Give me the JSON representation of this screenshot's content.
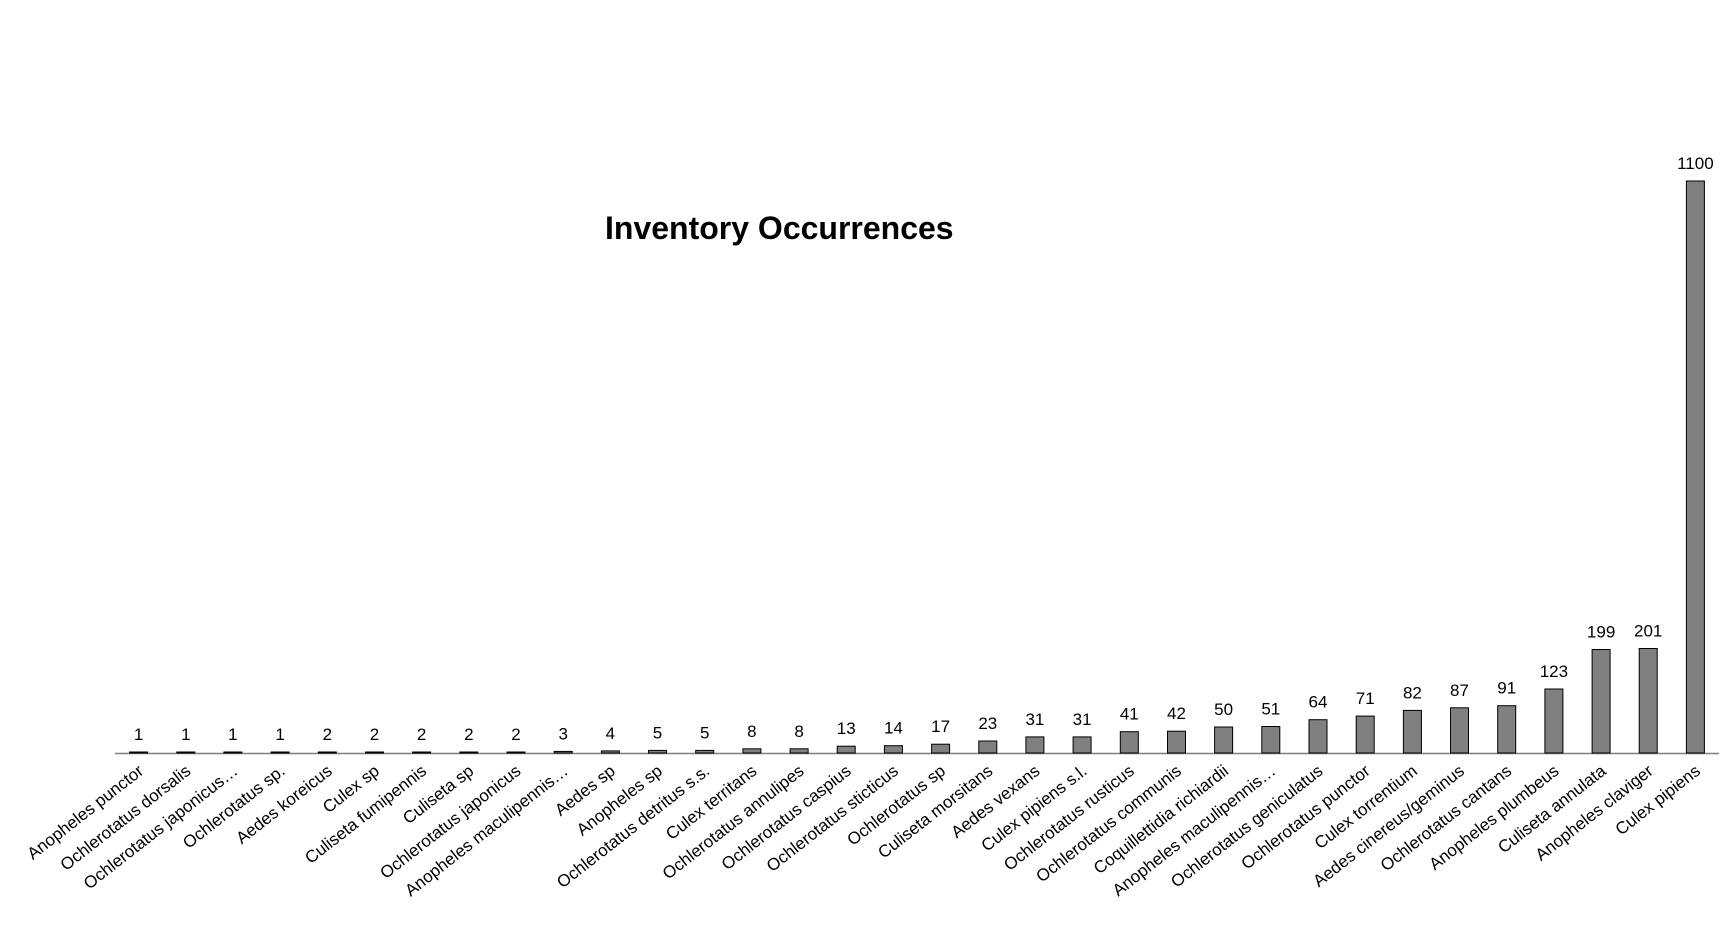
{
  "chart_data": {
    "type": "bar",
    "title": "Inventory Occurrences",
    "xlabel": "",
    "ylabel": "",
    "ylim": [
      0,
      1100
    ],
    "grid": false,
    "legend": "none",
    "bar_color": "#808080",
    "bar_stroke": "#000000",
    "categories": [
      "Anopheles punctor",
      "Ochlerotatus dorsalis",
      "Ochlerotatus japonicus…",
      "Ochlerotatus sp.",
      "Aedes koreicus",
      "Culex sp",
      "Culiseta fumipennis",
      "Culiseta sp",
      "Ochlerotatus japonicus",
      "Anopheles maculipennis…",
      "Aedes sp",
      "Anopheles sp",
      "Ochlerotatus detritus s.s.",
      "Culex territans",
      "Ochlerotatus annulipes",
      "Ochlerotatus caspius",
      "Ochlerotatus sticticus",
      "Ochlerotatus sp",
      "Culiseta morsitans",
      "Aedes vexans",
      "Culex pipiens s.l.",
      "Ochlerotatus rusticus",
      "Ochlerotatus communis",
      "Coquillettidia richiardii",
      "Anopheles maculipennis…",
      "Ochlerotatus geniculatus",
      "Ochlerotatus punctor",
      "Culex torrentium",
      "Aedes cinereus/geminus",
      "Ochlerotatus cantans",
      "Anopheles plumbeus",
      "Culiseta annulata",
      "Anopheles claviger",
      "Culex pipiens"
    ],
    "values": [
      1,
      1,
      1,
      1,
      2,
      2,
      2,
      2,
      2,
      3,
      4,
      5,
      5,
      8,
      8,
      13,
      14,
      17,
      23,
      31,
      31,
      41,
      42,
      50,
      51,
      64,
      71,
      82,
      87,
      91,
      123,
      199,
      201,
      1100
    ]
  }
}
